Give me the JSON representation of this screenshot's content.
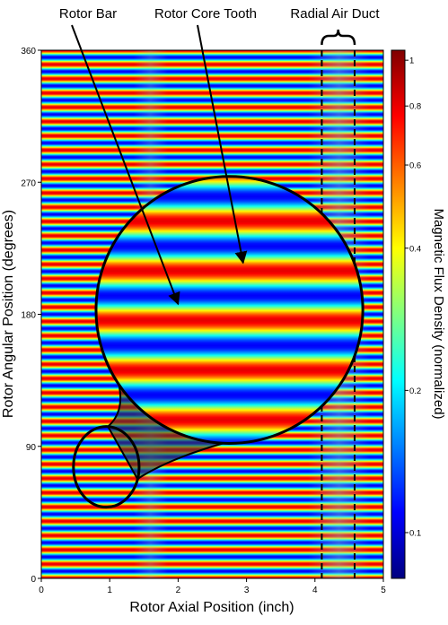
{
  "chart_data": {
    "type": "heatmap",
    "title": "",
    "xlabel": "Rotor Axial Position (inch)",
    "ylabel": "Rotor Angular Position (degrees)",
    "colorbar_label": "Magnetic Flux Density (normalized)",
    "xlim": [
      0,
      5
    ],
    "ylim": [
      0,
      360
    ],
    "x_ticks": [
      0,
      1,
      2,
      3,
      4,
      5
    ],
    "y_ticks": [
      0,
      90,
      180,
      270,
      360
    ],
    "colorbar_range": [
      0.08,
      1.05
    ],
    "colorbar_scale": "log",
    "colorbar_ticks": [
      0.1,
      0.2,
      0.4,
      0.6,
      0.8,
      1
    ],
    "colormap": "jet",
    "field": {
      "band_count": 37,
      "low_flux_axial_zones": [
        {
          "center": 1.6,
          "width": 0.25,
          "level": 0.55
        },
        {
          "center": 4.35,
          "width": 0.45,
          "level": 0.75
        }
      ]
    },
    "radial_air_duct_bounds": [
      4.1,
      4.58
    ],
    "annotations": [
      {
        "label": "Rotor Bar",
        "target": [
          2.0,
          187
        ]
      },
      {
        "label": "Rotor Core Tooth",
        "target": [
          2.95,
          215
        ]
      },
      {
        "label": "Radial Air Duct",
        "target": [
          4.34,
          360
        ]
      }
    ],
    "zoom": {
      "source_region": {
        "center": [
          0.95,
          76
        ],
        "radius_x": 0.48,
        "radius_y": 27.5
      },
      "magnified_region": {
        "center": [
          2.75,
          183
        ],
        "radius_x": 1.95,
        "radius_y": 91
      },
      "magnification": 4
    }
  },
  "colors": {
    "outline": "#000000",
    "magnify_fill": "#3a3a3a"
  }
}
